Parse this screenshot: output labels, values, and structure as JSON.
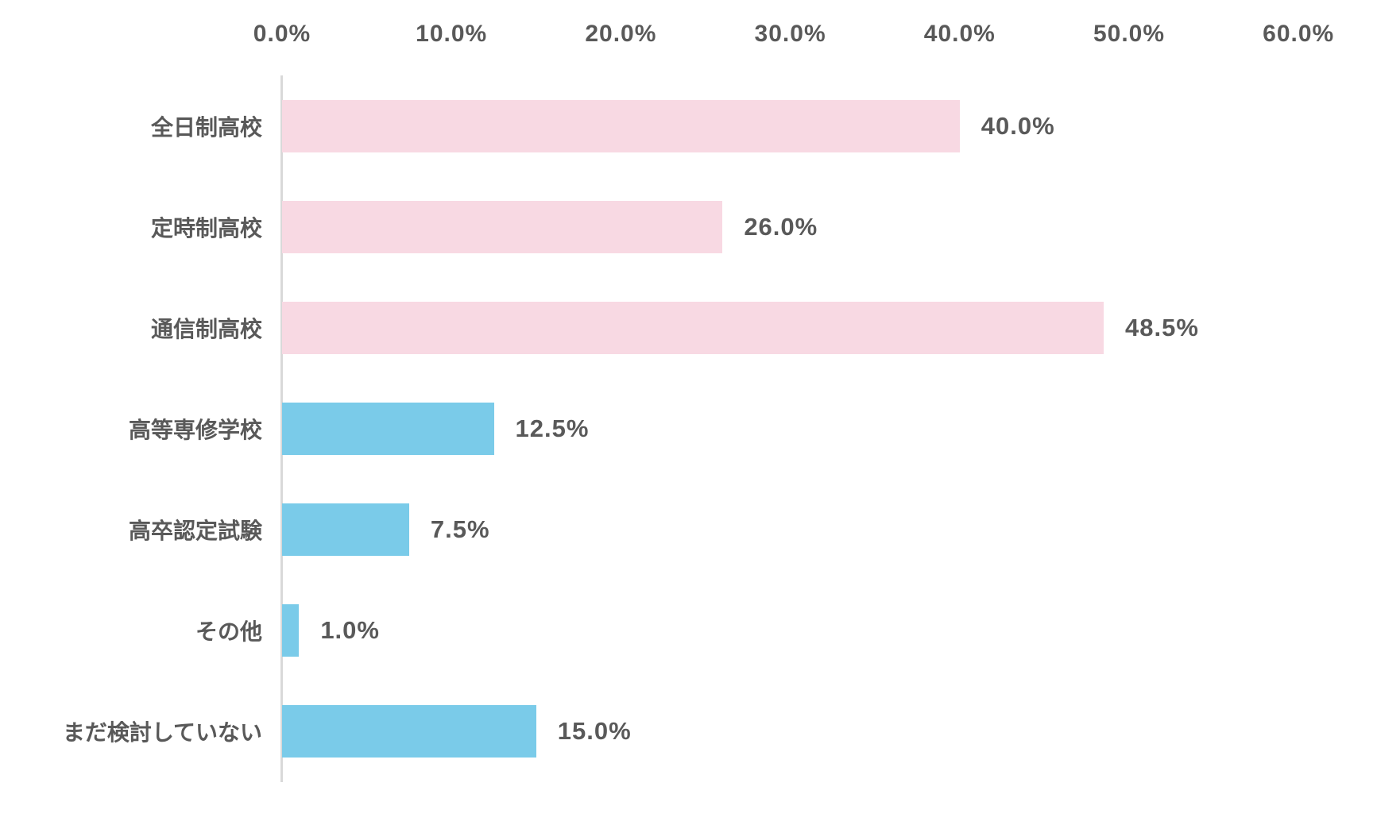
{
  "chart_data": {
    "type": "bar",
    "orientation": "horizontal",
    "title": "",
    "categories": [
      "全日制高校",
      "定時制高校",
      "通信制高校",
      "高等専修学校",
      "高卒認定試験",
      "その他",
      "まだ検討していない"
    ],
    "values": [
      40.0,
      26.0,
      48.5,
      12.5,
      7.5,
      1.0,
      15.0
    ],
    "value_labels": [
      "40.0%",
      "26.0%",
      "48.5%",
      "12.5%",
      "7.5%",
      "1.0%",
      "15.0%"
    ],
    "bar_colors": [
      "#f8d9e3",
      "#f8d9e3",
      "#f8d9e3",
      "#7acbe9",
      "#7acbe9",
      "#7acbe9",
      "#7acbe9"
    ],
    "x_axis": {
      "position": "top",
      "tick_labels": [
        "0.0%",
        "10.0%",
        "20.0%",
        "30.0%",
        "40.0%",
        "50.0%",
        "60.0%"
      ],
      "tick_values": [
        0,
        10,
        20,
        30,
        40,
        50,
        60
      ],
      "min": 0,
      "max": 60
    },
    "grid": false,
    "legend": null,
    "colors": {
      "pink_series": "#f8d9e3",
      "blue_series": "#7acbe9",
      "text": "#595959",
      "axis_line": "#d9d9d9",
      "background": "#ffffff"
    }
  }
}
